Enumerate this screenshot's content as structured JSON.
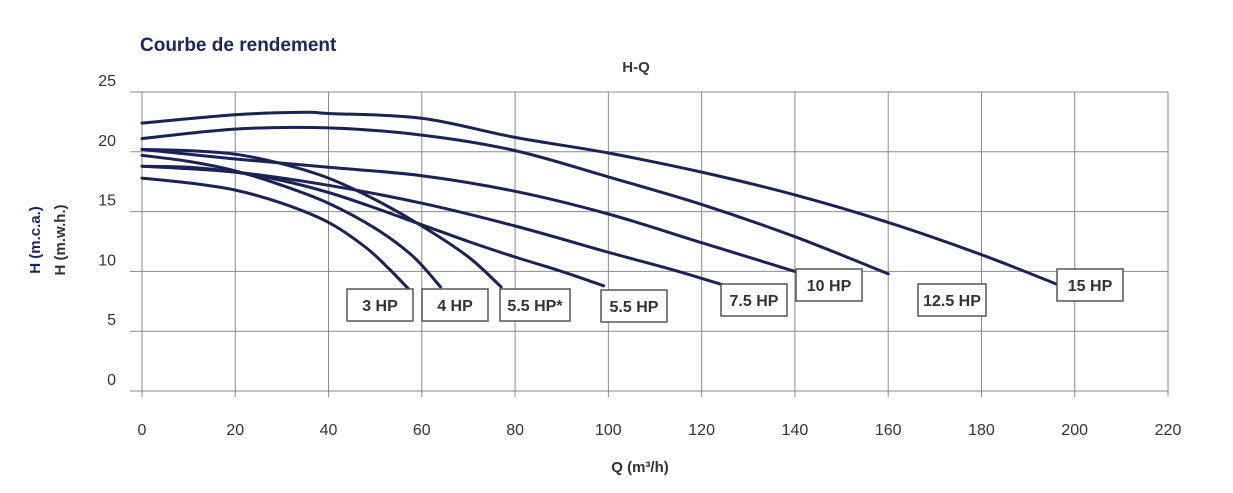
{
  "chart_data": {
    "type": "line",
    "title": "Courbe de rendement",
    "subtitle": "H-Q",
    "xlabel": "Q (m³/h)",
    "ylabel": [
      "H (m.c.a.)",
      "H (m.w.h.)"
    ],
    "xlim": [
      0,
      220
    ],
    "ylim": [
      0,
      25
    ],
    "xticks": [
      0,
      20,
      40,
      60,
      80,
      100,
      120,
      140,
      160,
      180,
      200,
      220
    ],
    "yticks": [
      0,
      5,
      10,
      15,
      20,
      25
    ],
    "grid": true,
    "line_color": "#1b2356",
    "series": [
      {
        "name": "3 HP",
        "x": [
          0,
          10,
          20,
          30,
          40,
          48,
          53,
          57
        ],
        "y": [
          17.8,
          17.4,
          16.8,
          15.7,
          14.1,
          12.0,
          10.2,
          8.6
        ]
      },
      {
        "name": "4 HP",
        "x": [
          0,
          10,
          20,
          30,
          40,
          50,
          58,
          64
        ],
        "y": [
          19.7,
          19.2,
          18.4,
          17.2,
          15.7,
          13.6,
          11.3,
          8.7
        ]
      },
      {
        "name": "5.5 HP*",
        "x": [
          0,
          10,
          20,
          30,
          40,
          50,
          60,
          70,
          77
        ],
        "y": [
          20.2,
          20.1,
          19.8,
          19.0,
          17.8,
          16.0,
          13.8,
          11.2,
          8.7
        ]
      },
      {
        "name": "5.5 HP",
        "x": [
          0,
          10,
          20,
          30,
          40,
          50,
          60,
          70,
          80,
          90,
          99
        ],
        "y": [
          18.8,
          18.7,
          18.3,
          17.6,
          16.6,
          15.3,
          13.9,
          12.5,
          11.2,
          10.0,
          8.8
        ]
      },
      {
        "name": "7.5 HP",
        "x": [
          0,
          20,
          40,
          60,
          80,
          100,
          115,
          126
        ],
        "y": [
          18.8,
          18.3,
          17.2,
          15.7,
          13.8,
          11.6,
          10.0,
          8.7
        ]
      },
      {
        "name": "10 HP",
        "x": [
          0,
          20,
          40,
          60,
          80,
          100,
          120,
          140
        ],
        "y": [
          20.2,
          19.4,
          18.7,
          18.0,
          16.7,
          14.8,
          12.4,
          10.0
        ]
      },
      {
        "name": "12.5 HP",
        "x": [
          0,
          20,
          40,
          60,
          80,
          100,
          120,
          140,
          160
        ],
        "y": [
          21.1,
          21.9,
          22.0,
          21.4,
          20.1,
          17.9,
          15.6,
          12.9,
          9.8
        ]
      },
      {
        "name": "15 HP",
        "x": [
          0,
          20,
          35,
          40,
          60,
          80,
          100,
          120,
          140,
          160,
          180,
          197
        ],
        "y": [
          22.4,
          23.1,
          23.3,
          23.2,
          22.8,
          21.2,
          19.9,
          18.3,
          16.4,
          14.1,
          11.4,
          8.8
        ]
      }
    ],
    "labels": [
      "3 HP",
      "4 HP",
      "5.5 HP*",
      "5.5 HP",
      "7.5 HP",
      "10 HP",
      "12.5 HP",
      "15 HP"
    ]
  }
}
